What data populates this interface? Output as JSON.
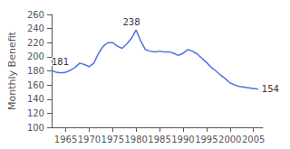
{
  "chart_data": {
    "type": "line",
    "x": [
      1962,
      1963,
      1964,
      1965,
      1966,
      1967,
      1968,
      1969,
      1970,
      1971,
      1972,
      1973,
      1974,
      1975,
      1976,
      1977,
      1978,
      1979,
      1980,
      1981,
      1982,
      1983,
      1984,
      1985,
      1986,
      1987,
      1988,
      1989,
      1990,
      1991,
      1992,
      1993,
      1994,
      1995,
      1996,
      1997,
      1998,
      1999,
      2000,
      2001,
      2002,
      2003,
      2004,
      2005,
      2006
    ],
    "values": [
      181,
      178,
      177,
      178,
      181,
      185,
      191,
      189,
      186,
      191,
      205,
      215,
      220,
      220,
      215,
      212,
      218,
      226,
      238,
      222,
      210,
      208,
      207,
      208,
      207,
      207,
      205,
      202,
      205,
      210,
      208,
      204,
      198,
      192,
      185,
      180,
      174,
      169,
      163,
      160,
      158,
      157,
      156,
      155,
      154
    ],
    "ylabel": "Monthly Benefit",
    "xlim": [
      1962,
      2007
    ],
    "ylim": [
      100,
      260
    ],
    "xticks": [
      1965,
      1970,
      1975,
      1980,
      1985,
      1990,
      1995,
      2000,
      2005
    ],
    "yticks": [
      100,
      120,
      140,
      160,
      180,
      200,
      220,
      240,
      260
    ],
    "annotations": [
      {
        "x": 1962,
        "y": 181,
        "text": "181"
      },
      {
        "x": 1979,
        "y": 238,
        "text": "238"
      },
      {
        "x": 2006,
        "y": 154,
        "text": "154"
      }
    ],
    "grid": false
  }
}
